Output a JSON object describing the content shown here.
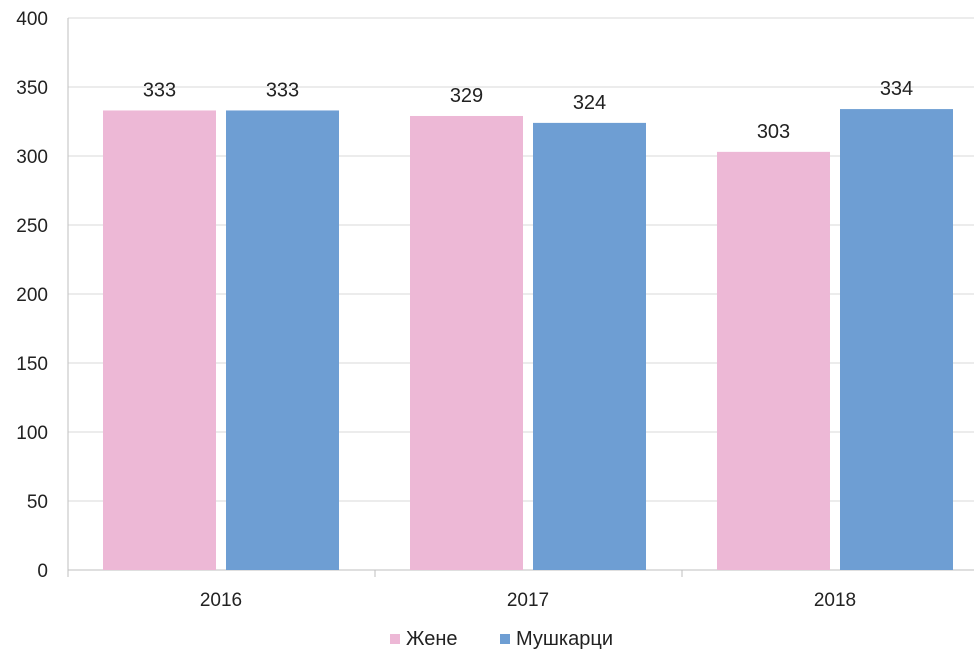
{
  "chart_data": {
    "type": "bar",
    "categories": [
      "2016",
      "2017",
      "2018"
    ],
    "series": [
      {
        "name": "Жене",
        "values": [
          333,
          329,
          303
        ],
        "color": "#EDB8D6"
      },
      {
        "name": "Мушкарци",
        "values": [
          333,
          324,
          334
        ],
        "color": "#6E9ED3"
      }
    ],
    "ylim": [
      0,
      400
    ],
    "yticks": [
      0,
      50,
      100,
      150,
      200,
      250,
      300,
      350,
      400
    ],
    "grid": true,
    "legend_position": "bottom",
    "data_labels": true
  }
}
